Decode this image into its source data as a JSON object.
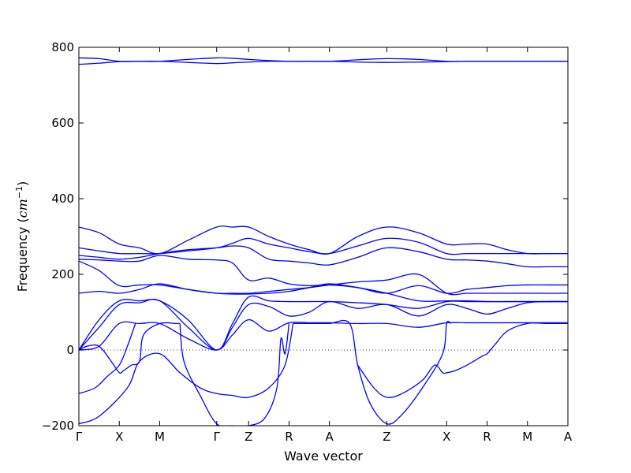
{
  "chart_data": {
    "type": "line",
    "title": "",
    "xlabel": "Wave vector",
    "ylabel": {
      "prefix": "Frequency (",
      "unit_base": "cm",
      "unit_exp": "−1",
      "suffix": ")"
    },
    "ylim": [
      -200,
      800
    ],
    "yticks": [
      -200,
      0,
      200,
      400,
      600,
      800
    ],
    "xlim": [
      0,
      12.1
    ],
    "x_ticks": [
      {
        "label": "Γ",
        "x": 0
      },
      {
        "label": "X",
        "x": 1
      },
      {
        "label": "M",
        "x": 2
      },
      {
        "label": "Γ",
        "x": 3.41
      },
      {
        "label": "Z",
        "x": 4.2
      },
      {
        "label": "R",
        "x": 5.2
      },
      {
        "label": "A",
        "x": 6.2
      },
      {
        "label": "Z",
        "x": 7.62
      },
      {
        "label": "X",
        "x": 9.1
      },
      {
        "label": "R",
        "x": 10.1
      },
      {
        "label": "M",
        "x": 11.1
      },
      {
        "label": "A",
        "x": 12.1
      }
    ],
    "zero_line": {
      "y": 0,
      "style": "dotted"
    },
    "line_color": "#0000ff",
    "series": [
      {
        "x": [
          0,
          0.5,
          1,
          1.5,
          2,
          2.7,
          3.41,
          3.8,
          4.2,
          4.7,
          5.2,
          5.7,
          6.2,
          6.9,
          7.62,
          8.4,
          9.1,
          9.6,
          10.1,
          10.6,
          11.1,
          11.6,
          12.1
        ],
        "y": [
          772,
          770,
          763,
          763,
          763,
          768,
          772,
          771,
          768,
          765,
          763,
          763,
          763,
          767,
          770,
          768,
          763,
          763,
          763,
          763,
          763,
          763,
          763
        ]
      },
      {
        "x": [
          0,
          0.5,
          1,
          1.5,
          2,
          2.7,
          3.41,
          3.8,
          4.2,
          4.7,
          5.2,
          5.7,
          6.2,
          6.9,
          7.62,
          8.4,
          9.1,
          9.6,
          10.1,
          10.6,
          11.1,
          11.6,
          12.1
        ],
        "y": [
          755,
          758,
          762,
          763,
          763,
          760,
          757,
          759,
          761,
          763,
          763,
          763,
          763,
          761,
          760,
          761,
          762,
          763,
          763,
          763,
          763,
          763,
          763
        ]
      },
      {
        "x": [
          0,
          0.5,
          1,
          1.5,
          2,
          2.7,
          3.41,
          3.8,
          4.2,
          4.7,
          5.2,
          5.7,
          6.2,
          6.9,
          7.62,
          8.4,
          9.1,
          9.6,
          10.1,
          10.6,
          11.1,
          11.6,
          12.1
        ],
        "y": [
          325,
          310,
          280,
          270,
          255,
          290,
          325,
          325,
          325,
          300,
          280,
          265,
          255,
          300,
          325,
          310,
          280,
          280,
          280,
          265,
          255,
          255,
          255
        ]
      },
      {
        "x": [
          0,
          0.5,
          1,
          1.5,
          2,
          2.7,
          3.41,
          3.8,
          4.2,
          4.7,
          5.2,
          5.7,
          6.2,
          6.9,
          7.62,
          8.4,
          9.1,
          9.6,
          10.1,
          10.6,
          11.1,
          11.6,
          12.1
        ],
        "y": [
          270,
          262,
          255,
          255,
          255,
          262,
          270,
          282,
          295,
          280,
          270,
          260,
          255,
          275,
          295,
          285,
          255,
          255,
          255,
          255,
          255,
          255,
          255
        ]
      },
      {
        "x": [
          0,
          0.5,
          1,
          1.5,
          2,
          2.7,
          3.41,
          3.8,
          4.2,
          4.7,
          5.2,
          5.7,
          6.2,
          6.9,
          7.62,
          8.4,
          9.1,
          9.6,
          10.1,
          10.6,
          11.1,
          11.6,
          12.1
        ],
        "y": [
          250,
          245,
          240,
          245,
          255,
          265,
          270,
          275,
          270,
          240,
          235,
          230,
          225,
          245,
          270,
          260,
          240,
          238,
          235,
          228,
          220,
          220,
          220
        ]
      },
      {
        "x": [
          0,
          0.5,
          1,
          1.5,
          2,
          2.7,
          3.41,
          3.8,
          4.2,
          4.7,
          5.2,
          5.7,
          6.2,
          6.9,
          7.62,
          8.4,
          9.1,
          9.6,
          10.1,
          10.6,
          11.1,
          11.6,
          12.1
        ],
        "y": [
          240,
          238,
          235,
          235,
          250,
          240,
          238,
          230,
          185,
          190,
          175,
          170,
          172,
          165,
          150,
          170,
          150,
          160,
          165,
          170,
          172,
          172,
          172
        ]
      },
      {
        "x": [
          0,
          0.5,
          1,
          1.5,
          2,
          2.7,
          3.41,
          3.8,
          4.2,
          4.7,
          5.2,
          5.7,
          6.2,
          6.9,
          7.62,
          8.4,
          9.1,
          9.6,
          10.1,
          10.6,
          11.1,
          11.6,
          12.1
        ],
        "y": [
          235,
          210,
          170,
          172,
          172,
          160,
          150,
          150,
          150,
          155,
          160,
          165,
          172,
          180,
          185,
          200,
          150,
          150,
          150,
          150,
          150,
          150,
          150
        ]
      },
      {
        "x": [
          0,
          0.5,
          1,
          1.5,
          2,
          2.7,
          3.41,
          3.8,
          4.2,
          4.7,
          5.2,
          5.7,
          6.2,
          6.9,
          7.62,
          8.4,
          9.1,
          9.6,
          10.1,
          10.6,
          11.1,
          11.6,
          12.1
        ],
        "y": [
          150,
          155,
          150,
          160,
          175,
          160,
          150,
          148,
          148,
          150,
          155,
          165,
          175,
          165,
          150,
          130,
          130,
          130,
          128,
          128,
          128,
          128,
          128
        ]
      },
      {
        "x": [
          0,
          0.5,
          1,
          1.5,
          2,
          2.7,
          3.41,
          3.8,
          4.2,
          4.7,
          5.2,
          5.7,
          6.2,
          6.9,
          7.62,
          8.4,
          9.1,
          9.6,
          10.1,
          10.6,
          11.1,
          11.6,
          12.1
        ],
        "y": [
          0,
          80,
          130,
          130,
          130,
          80,
          0,
          70,
          140,
          130,
          128,
          128,
          128,
          125,
          120,
          110,
          128,
          128,
          128,
          128,
          128,
          128,
          128
        ]
      },
      {
        "x": [
          0,
          0.5,
          1,
          1.5,
          2,
          2.7,
          3.41,
          3.8,
          4.2,
          4.7,
          5.2,
          5.7,
          6.2,
          6.9,
          7.62,
          8.4,
          9.1,
          9.6,
          10.1,
          10.6,
          11.1,
          11.6,
          12.1
        ],
        "y": [
          0,
          60,
          120,
          125,
          130,
          60,
          0,
          60,
          120,
          115,
          90,
          100,
          128,
          110,
          120,
          90,
          120,
          110,
          95,
          110,
          125,
          128,
          128
        ]
      },
      {
        "x": [
          0,
          0.5,
          1,
          1.5,
          2,
          2.7,
          3.41,
          3.8,
          4.2,
          4.7,
          5.2,
          5.7,
          6.2,
          6.9,
          7.62,
          8.4,
          9.1,
          9.6,
          10.1,
          10.6,
          11.1,
          11.6,
          12.1
        ],
        "y": [
          0,
          10,
          70,
          70,
          70,
          30,
          0,
          40,
          80,
          50,
          72,
          72,
          72,
          70,
          70,
          60,
          72,
          72,
          72,
          72,
          72,
          72,
          72
        ]
      },
      {
        "x": [
          0,
          0.2,
          0.5,
          0.8,
          1,
          1.1,
          1.3,
          1.5,
          1.6,
          2,
          2.4,
          2.5
        ],
        "y": [
          0,
          10,
          10,
          -30,
          -60,
          -55,
          -40,
          -30,
          40,
          70,
          70,
          70
        ]
      },
      {
        "x": [
          2.5,
          2.6,
          3,
          3.41,
          3.8,
          4.2,
          4.6,
          4.9,
          5,
          5.1,
          5.2
        ],
        "y": [
          70,
          -30,
          -120,
          -195,
          -200,
          -200,
          -180,
          -100,
          30,
          -10,
          70
        ]
      },
      {
        "x": [
          0,
          0.4,
          0.7,
          1,
          1.2,
          1.4
        ],
        "y": [
          -115,
          -100,
          -70,
          -40,
          10,
          70
        ]
      },
      {
        "x": [
          0,
          0.5,
          1.2,
          1.5,
          2,
          2.5,
          3,
          3.41,
          3.8,
          4.2,
          4.7,
          5.1,
          5.3
        ],
        "y": [
          -195,
          -175,
          -100,
          -30,
          -10,
          -60,
          -100,
          -115,
          -120,
          -125,
          -100,
          -40,
          70
        ]
      },
      {
        "x": [
          5.3,
          5.8,
          6.2,
          6.7,
          6.9,
          7.2,
          7.62,
          8,
          8.5,
          9,
          9.1,
          9.2
        ],
        "y": [
          70,
          70,
          70,
          70,
          -40,
          -140,
          -195,
          -170,
          -100,
          -10,
          70,
          70
        ]
      },
      {
        "x": [
          6.9,
          7.3,
          7.62,
          8,
          8.5,
          8.8,
          9,
          9.1,
          9.3,
          9.6,
          10,
          10.1,
          10.3,
          10.6,
          11.1,
          11.6,
          12.1
        ],
        "y": [
          -40,
          -100,
          -125,
          -115,
          -80,
          -40,
          -60,
          -60,
          -55,
          -40,
          -15,
          -10,
          15,
          50,
          70,
          70,
          70
        ]
      }
    ]
  }
}
